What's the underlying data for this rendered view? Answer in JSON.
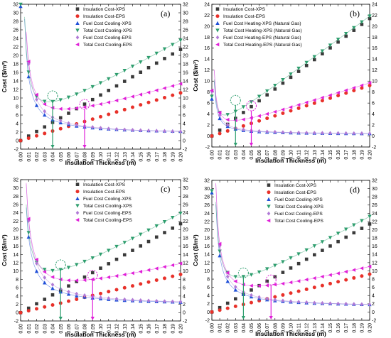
{
  "colors": {
    "black": "#3a3a3a",
    "red": "#e8312a",
    "blue": "#1f4fd8",
    "green": "#2e9e6e",
    "purple": "#b07ad6",
    "magenta": "#e020d8"
  },
  "chart_data": [
    {
      "type": "scatter",
      "panel_label": "(a)",
      "xlabel": "Insulation Thickness (m)",
      "ylabel": "Cost ($/m²)",
      "xlim": [
        0,
        0.2
      ],
      "ylim": [
        -2,
        32
      ],
      "x_ticks": [
        "0.00",
        "0.01",
        "0.02",
        "0.03",
        "0.04",
        "0.05",
        "0.06",
        "0.07",
        "0.08",
        "0.09",
        "0.10",
        "0.11",
        "0.12",
        "0.13",
        "0.14",
        "0.15",
        "0.16",
        "0.17",
        "0.18",
        "0.19",
        "0.20"
      ],
      "y_ticks": [
        "-2",
        "0",
        "2",
        "4",
        "6",
        "8",
        "10",
        "12",
        "14",
        "16",
        "18",
        "20",
        "22",
        "24",
        "26",
        "28",
        "30",
        "32"
      ],
      "legend_position": "top-right",
      "optimum_markers": [
        {
          "x": 0.04,
          "y": 10.5,
          "color": "green"
        },
        {
          "x": 0.08,
          "y": 8.5,
          "color": "magenta"
        }
      ],
      "series": [
        {
          "name": "Insulation Cost-XPS",
          "marker": "square",
          "color": "black",
          "kind": "linear",
          "a": 0.0,
          "b": 107
        },
        {
          "name": "Insulation Cost-EPS",
          "marker": "circle",
          "color": "red",
          "kind": "linear",
          "a": 0.0,
          "b": 56
        },
        {
          "name": "Fuel Cost Cooling-XPS",
          "marker": "triangle-up",
          "color": "blue",
          "kind": "fuel",
          "a": 1.5,
          "b": 0.135
        },
        {
          "name": "Total Cost Cooling-XPS",
          "marker": "triangle-down",
          "color": "green",
          "kind": "total",
          "a": 1.5,
          "b": 0.135,
          "c": 107
        },
        {
          "name": "Fuel Cost Cooling-EPS",
          "marker": "diamond",
          "color": "purple",
          "kind": "fuel",
          "a": 1.3,
          "b": 0.167
        },
        {
          "name": "Total Cost Cooling-EPS",
          "marker": "triangle-left",
          "color": "magenta",
          "kind": "total",
          "a": 1.3,
          "b": 0.167,
          "c": 56
        }
      ]
    },
    {
      "type": "scatter",
      "panel_label": "(b)",
      "xlabel": "Insulation Thickness (m)",
      "ylabel": "Cost ($/m²)",
      "xlim": [
        0,
        0.2
      ],
      "ylim": [
        -2,
        24
      ],
      "x_ticks": [
        "0.00",
        "0.01",
        "0.02",
        "0.03",
        "0.04",
        "0.05",
        "0.06",
        "0.07",
        "0.08",
        "0.09",
        "0.10",
        "0.11",
        "0.12",
        "0.13",
        "0.14",
        "0.15",
        "0.16",
        "0.17",
        "0.18",
        "0.19",
        "0.20"
      ],
      "y_ticks": [
        "-2",
        "0",
        "2",
        "4",
        "6",
        "8",
        "10",
        "12",
        "14",
        "16",
        "18",
        "20",
        "22",
        "24"
      ],
      "legend_position": "top-left",
      "optimum_markers": [
        {
          "x": 0.03,
          "y": 6.5,
          "color": "green"
        },
        {
          "x": 0.05,
          "y": 5.5,
          "color": "magenta"
        }
      ],
      "series": [
        {
          "name": "Insulation Cost-XPS",
          "marker": "square",
          "color": "black",
          "kind": "linear",
          "a": 0.0,
          "b": 107
        },
        {
          "name": "Insulation Cost-EPS",
          "marker": "circle",
          "color": "red",
          "kind": "linear",
          "a": 0.0,
          "b": 46
        },
        {
          "name": "Fuel Cost Heating-XPS (Natural Gas)",
          "marker": "triangle-up",
          "color": "blue",
          "kind": "fuel",
          "a": 0.3,
          "b": 0.029
        },
        {
          "name": "Total Cost Heating-XPS (Natural Gas)",
          "marker": "triangle-down",
          "color": "green",
          "kind": "total",
          "a": 0.3,
          "b": 0.029,
          "c": 107
        },
        {
          "name": "Fuel Cost Heating-EPS (Natural Gas)",
          "marker": "diamond",
          "color": "purple",
          "kind": "fuel",
          "a": 0.3,
          "b": 0.035
        },
        {
          "name": "Total Cost Heating-EPS (Natural Gas)",
          "marker": "triangle-left",
          "color": "magenta",
          "kind": "total",
          "a": 0.3,
          "b": 0.035,
          "c": 46
        }
      ]
    },
    {
      "type": "scatter",
      "panel_label": "(c)",
      "xlabel": "Insulation Thickness (m)",
      "ylabel": "Cost ($/m²)",
      "xlim": [
        0,
        0.2
      ],
      "ylim": [
        -2,
        32
      ],
      "x_ticks": [
        "0.00",
        "0.01",
        "0.02",
        "0.03",
        "0.04",
        "0.05",
        "0.06",
        "0.07",
        "0.08",
        "0.09",
        "0.10",
        "0.11",
        "0.12",
        "0.13",
        "0.14",
        "0.15",
        "0.16",
        "0.17",
        "0.18",
        "0.19",
        "0.20"
      ],
      "y_ticks": [
        "-2",
        "0",
        "2",
        "4",
        "6",
        "8",
        "10",
        "12",
        "14",
        "16",
        "18",
        "20",
        "22",
        "24",
        "26",
        "28",
        "30",
        "32"
      ],
      "legend_position": "top-right",
      "optimum_markers": [
        {
          "x": 0.05,
          "y": 11.5,
          "color": "green"
        },
        {
          "x": 0.09,
          "y": 9.0,
          "color": "magenta"
        }
      ],
      "series": [
        {
          "name": "Insulation Cost-XPS",
          "marker": "square",
          "color": "black",
          "kind": "linear",
          "a": 0.0,
          "b": 107
        },
        {
          "name": "Insulation Cost-EPS",
          "marker": "circle",
          "color": "red",
          "kind": "linear",
          "a": 0.0,
          "b": 46
        },
        {
          "name": "Fuel Cost Cooling-XPS",
          "marker": "triangle-up",
          "color": "blue",
          "kind": "fuel",
          "a": 1.7,
          "b": 0.165
        },
        {
          "name": "Total Cost Cooling-XPS",
          "marker": "triangle-down",
          "color": "green",
          "kind": "total",
          "a": 1.7,
          "b": 0.165,
          "c": 107
        },
        {
          "name": "Fuel Cost Cooling-EPS",
          "marker": "diamond",
          "color": "purple",
          "kind": "fuel",
          "a": 1.6,
          "b": 0.205
        },
        {
          "name": "Total Cost Cooling-EPS",
          "marker": "triangle-left",
          "color": "magenta",
          "kind": "total",
          "a": 1.6,
          "b": 0.205,
          "c": 46
        }
      ]
    },
    {
      "type": "scatter",
      "panel_label": "(d)",
      "xlabel": "Insulation Thickness (m)",
      "ylabel": "Cost ($/m²)",
      "xlim": [
        0,
        0.2
      ],
      "ylim": [
        -2,
        32
      ],
      "x_ticks": [
        "0.00",
        "0.01",
        "0.02",
        "0.03",
        "0.04",
        "0.05",
        "0.06",
        "0.07",
        "0.08",
        "0.09",
        "0.10",
        "0.11",
        "0.12",
        "0.13",
        "0.14",
        "0.15",
        "0.16",
        "0.17",
        "0.18",
        "0.19",
        "0.20"
      ],
      "y_ticks": [
        "-2",
        "0",
        "2",
        "4",
        "6",
        "8",
        "10",
        "12",
        "14",
        "16",
        "18",
        "20",
        "22",
        "24",
        "26",
        "28",
        "30",
        "32"
      ],
      "legend_position": "top-right",
      "optimum_markers": [
        {
          "x": 0.04,
          "y": 9.5,
          "color": "green"
        },
        {
          "x": 0.075,
          "y": 7.8,
          "color": "magenta"
        }
      ],
      "series": [
        {
          "name": "Insulation Cost-XPS",
          "marker": "square",
          "color": "black",
          "kind": "linear",
          "a": 0.0,
          "b": 107
        },
        {
          "name": "Insulation Cost-EPS",
          "marker": "circle",
          "color": "red",
          "kind": "linear",
          "a": 0.0,
          "b": 46
        },
        {
          "name": "Fuel Cost Cooling-XPS",
          "marker": "triangle-up",
          "color": "blue",
          "kind": "fuel",
          "a": 1.2,
          "b": 0.125
        },
        {
          "name": "Total Cost Cooling-XPS",
          "marker": "triangle-down",
          "color": "green",
          "kind": "total",
          "a": 1.2,
          "b": 0.125,
          "c": 107
        },
        {
          "name": "Fuel Cost Cooling-EPS",
          "marker": "diamond",
          "color": "purple",
          "kind": "fuel",
          "a": 1.1,
          "b": 0.15
        },
        {
          "name": "Total Cost Cooling-EPS",
          "marker": "triangle-left",
          "color": "magenta",
          "kind": "total",
          "a": 1.1,
          "b": 0.15,
          "c": 46
        }
      ]
    }
  ]
}
